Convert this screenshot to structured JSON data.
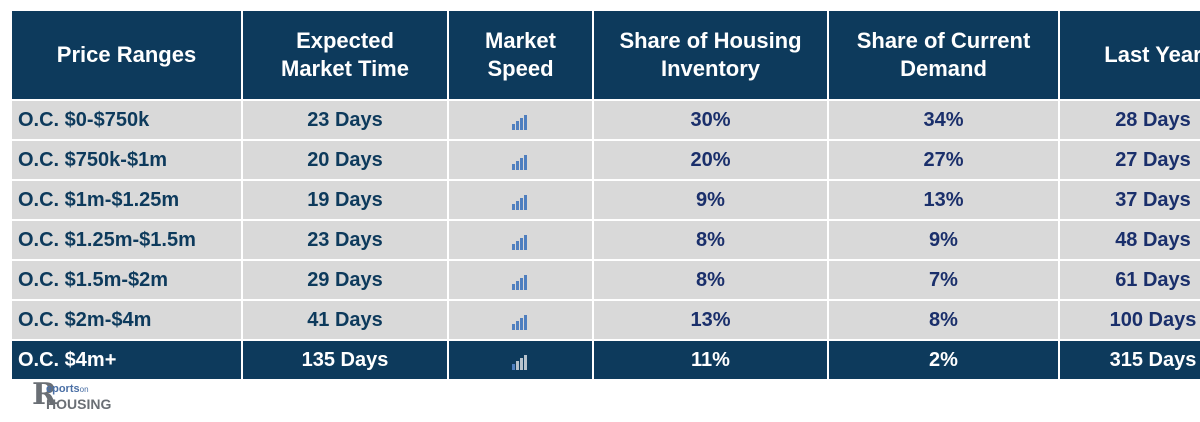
{
  "table": {
    "headers": [
      "Price Ranges",
      "Expected Market Time",
      "Market Speed",
      "Share of Housing Inventory",
      "Share of Current Demand",
      "Last Year"
    ],
    "headers_lines": [
      [
        "Price Ranges"
      ],
      [
        "Expected",
        "Market Time"
      ],
      [
        "Market",
        "Speed"
      ],
      [
        "Share of Housing",
        "Inventory"
      ],
      [
        "Share of Current",
        "Demand"
      ],
      [
        "Last Year"
      ]
    ],
    "rows": [
      {
        "range": "O.C. $0-$750k",
        "market_time": "23 Days",
        "speed_icon": "signal-bars-icon",
        "inventory": "30%",
        "demand": "34%",
        "last_year": "28 Days"
      },
      {
        "range": "O.C. $750k-$1m",
        "market_time": "20 Days",
        "speed_icon": "signal-bars-icon",
        "inventory": "20%",
        "demand": "27%",
        "last_year": "27 Days"
      },
      {
        "range": "O.C. $1m-$1.25m",
        "market_time": "19 Days",
        "speed_icon": "signal-bars-icon",
        "inventory": "9%",
        "demand": "13%",
        "last_year": "37 Days"
      },
      {
        "range": "O.C. $1.25m-$1.5m",
        "market_time": "23 Days",
        "speed_icon": "signal-bars-icon",
        "inventory": "8%",
        "demand": "9%",
        "last_year": "48 Days"
      },
      {
        "range": "O.C. $1.5m-$2m",
        "market_time": "29 Days",
        "speed_icon": "signal-bars-icon",
        "inventory": "8%",
        "demand": "7%",
        "last_year": "61 Days"
      },
      {
        "range": "O.C. $2m-$4m",
        "market_time": "41 Days",
        "speed_icon": "signal-bars-icon",
        "inventory": "13%",
        "demand": "8%",
        "last_year": "100 Days"
      },
      {
        "range": "O.C. $4m+",
        "market_time": "135 Days",
        "speed_icon": "signal-bars-icon",
        "inventory": "11%",
        "demand": "2%",
        "last_year": "315 Days"
      }
    ]
  },
  "logo": {
    "letter": "R",
    "reports": "eports",
    "on": "on",
    "housing": "HOUSING"
  },
  "colors": {
    "header_bg": "#0d3a5c",
    "row_bg": "#d9d9d9",
    "text_dark": "#0d3a5c",
    "icon_blue": "#4f7fbf"
  }
}
